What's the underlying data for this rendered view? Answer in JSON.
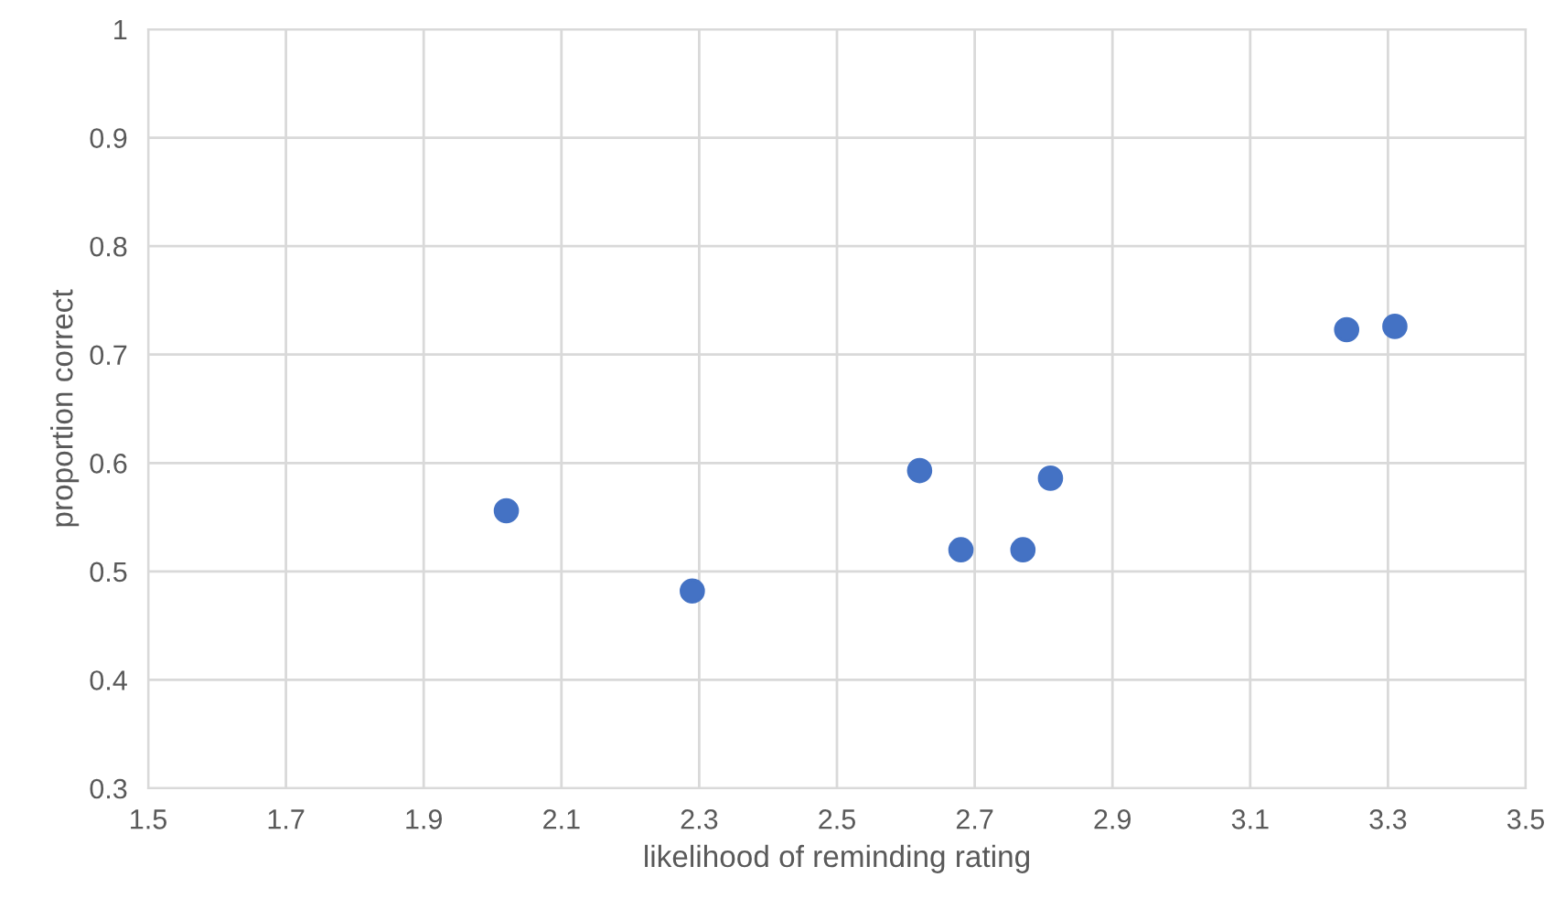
{
  "chart_data": {
    "type": "scatter",
    "xlabel": "likelihood of reminding rating",
    "ylabel": "proportion correct",
    "x": [
      2.02,
      2.29,
      2.62,
      2.68,
      2.77,
      2.81,
      3.24,
      3.31
    ],
    "series": [
      {
        "color": "#4472c4",
        "values": [
          0.556,
          0.482,
          0.593,
          0.52,
          0.52,
          0.586,
          0.723,
          0.726
        ]
      }
    ],
    "xlim": [
      1.5,
      3.5
    ],
    "xticks": [
      1.5,
      1.7,
      1.9,
      2.1,
      2.3,
      2.5,
      2.7,
      2.9,
      3.1,
      3.3,
      3.5
    ],
    "ylim": [
      0.3,
      1
    ],
    "yticks": [
      0.3,
      0.4,
      0.5,
      0.6,
      0.7,
      0.8,
      0.9,
      1
    ],
    "grid": true,
    "marker": "circle",
    "legend": false
  }
}
